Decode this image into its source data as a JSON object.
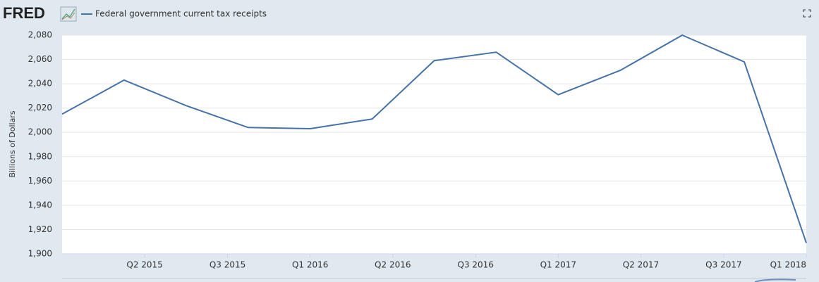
{
  "brand": "FRED",
  "chart_data": {
    "type": "line",
    "y_label": "Billions of Dollars",
    "x": [
      2015,
      2015.25,
      2015.5,
      2015.75,
      2016,
      2016.25,
      2016.5,
      2016.75,
      2017,
      2017.25,
      2017.5,
      2017.75,
      2018
    ],
    "series": [
      {
        "name": "Federal government current tax receipts",
        "color": "#4572a7",
        "values": [
          2015,
          2043,
          2022,
          2004,
          2003,
          2011,
          2059,
          2066,
          2031,
          2051,
          2080,
          2058,
          1909
        ]
      }
    ],
    "xlim": [
      2015,
      2018
    ],
    "xticks": [
      {
        "value": 2015.333,
        "label": "Q2 2015"
      },
      {
        "value": 2015.667,
        "label": "Q3 2015"
      },
      {
        "value": 2016,
        "label": "Q1 2016"
      },
      {
        "value": 2016.333,
        "label": "Q2 2016"
      },
      {
        "value": 2016.667,
        "label": "Q3 2016"
      },
      {
        "value": 2017,
        "label": "Q1 2017"
      },
      {
        "value": 2017.333,
        "label": "Q2 2017"
      },
      {
        "value": 2017.667,
        "label": "Q3 2017"
      },
      {
        "value": 2018,
        "label": "Q1 2018"
      }
    ],
    "ylim": [
      1900,
      2080
    ],
    "yticks": [
      {
        "value": 1900,
        "label": "1,900"
      },
      {
        "value": 1920,
        "label": "1,920"
      },
      {
        "value": 1940,
        "label": "1,940"
      },
      {
        "value": 1960,
        "label": "1,960"
      },
      {
        "value": 1980,
        "label": "1,980"
      },
      {
        "value": 2000,
        "label": "2,000"
      },
      {
        "value": 2020,
        "label": "2,020"
      },
      {
        "value": 2040,
        "label": "2,040"
      },
      {
        "value": 2060,
        "label": "2,060"
      },
      {
        "value": 2080,
        "label": "2,080"
      }
    ],
    "grid": true
  }
}
